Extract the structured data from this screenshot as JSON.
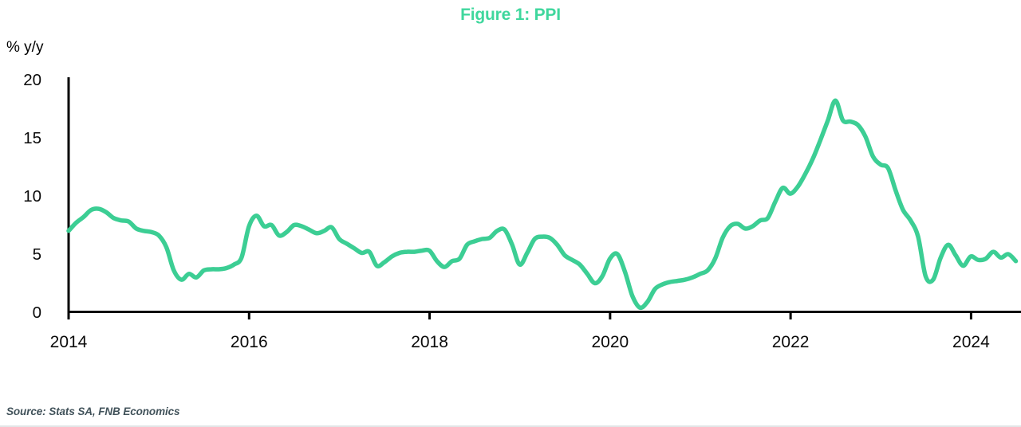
{
  "header": {
    "title": "Figure 1: PPI"
  },
  "colors": {
    "accent_green_title": "#3FD79D",
    "line_green": "#3CCE94",
    "axis_black": "#000000",
    "tick_label_black": "#0a0a0a",
    "source_text": "#41525a"
  },
  "footer": {
    "source": "Source: Stats SA, FNB Economics"
  },
  "chart_data": {
    "type": "line",
    "title": "Figure 1: PPI",
    "xlabel": "",
    "ylabel": "% y/y",
    "ylim": [
      0,
      20
    ],
    "y_tick_values": [
      0,
      5,
      10,
      15,
      20
    ],
    "y_tick_labels": [
      "0",
      "5",
      "10",
      "15",
      "20"
    ],
    "x_tick_years": [
      2014,
      2016,
      2018,
      2020,
      2022,
      2024
    ],
    "x_tick_labels": [
      "2014",
      "2016",
      "2018",
      "2020",
      "2022",
      "2024"
    ],
    "grid": false,
    "legend": "none",
    "frequency": "monthly",
    "x_start": "2014-01",
    "x_end": "2024-07",
    "series": [
      {
        "name": "PPI % y/y",
        "values": [
          7.0,
          7.7,
          8.2,
          8.8,
          8.9,
          8.6,
          8.1,
          7.9,
          7.8,
          7.2,
          7.0,
          6.9,
          6.6,
          5.6,
          3.6,
          2.8,
          3.3,
          3.0,
          3.6,
          3.7,
          3.7,
          3.8,
          4.1,
          4.7,
          7.4,
          8.3,
          7.4,
          7.5,
          6.6,
          6.9,
          7.5,
          7.4,
          7.1,
          6.8,
          7.0,
          7.3,
          6.3,
          5.9,
          5.5,
          5.1,
          5.2,
          4.0,
          4.3,
          4.8,
          5.1,
          5.2,
          5.2,
          5.3,
          5.3,
          4.4,
          3.9,
          4.4,
          4.6,
          5.8,
          6.1,
          6.3,
          6.4,
          7.0,
          7.1,
          5.8,
          4.1,
          5.1,
          6.3,
          6.5,
          6.4,
          5.8,
          4.9,
          4.5,
          4.1,
          3.3,
          2.5,
          3.1,
          4.6,
          5.0,
          3.5,
          1.4,
          0.4,
          0.9,
          2.0,
          2.4,
          2.6,
          2.7,
          2.8,
          3.0,
          3.3,
          3.6,
          4.6,
          6.4,
          7.4,
          7.6,
          7.2,
          7.4,
          7.9,
          8.1,
          9.5,
          10.7,
          10.2,
          10.8,
          11.9,
          13.2,
          14.8,
          16.5,
          18.2,
          16.5,
          16.4,
          16.1,
          15.1,
          13.4,
          12.7,
          12.4,
          10.5,
          8.8,
          7.9,
          6.5,
          3.1,
          2.8,
          4.7,
          5.8,
          4.9,
          4.0,
          4.8,
          4.5,
          4.6,
          5.2,
          4.7,
          5.0,
          4.4
        ]
      }
    ]
  }
}
